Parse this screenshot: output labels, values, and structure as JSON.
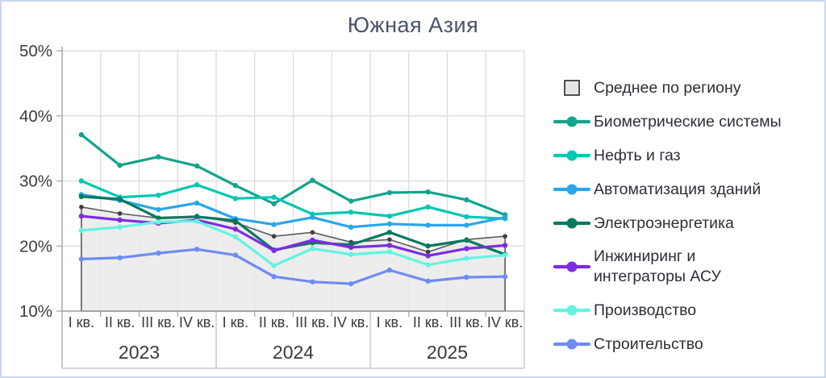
{
  "title": "Южная Азия",
  "legend": {
    "items": [
      {
        "id": "average",
        "label": "Среднее по региону",
        "type": "area",
        "color": "#e6e6e6",
        "border": "#3f3f3f"
      },
      {
        "id": "biometrics",
        "label": "Биометрические системы",
        "type": "line",
        "color": "#12a58b"
      },
      {
        "id": "oil-gas",
        "label": "Нефть и газ",
        "type": "line",
        "color": "#00c7b2"
      },
      {
        "id": "building-automation",
        "label": "Автоматизация зданий",
        "type": "line",
        "color": "#2aa6e8"
      },
      {
        "id": "power",
        "label": "Электроэнергетика",
        "type": "line",
        "color": "#057a5e"
      },
      {
        "id": "engineering-asu",
        "label": "Инжиниринг и\nинтеграторы АСУ",
        "type": "line",
        "color": "#7c2ce2"
      },
      {
        "id": "manufacturing",
        "label": "Производство",
        "type": "line",
        "color": "#62f4e1"
      },
      {
        "id": "construction",
        "label": "Строительство",
        "type": "line",
        "color": "#6e8cf2"
      }
    ]
  },
  "chart_data": {
    "type": "line",
    "title": "Южная Азия",
    "quarter_labels": [
      "I кв.",
      "II кв.",
      "III кв.",
      "IV кв."
    ],
    "year_labels": [
      "2023",
      "2024",
      "2025"
    ],
    "ylim": [
      10,
      50
    ],
    "yticks": [
      50,
      40,
      30,
      20,
      10
    ],
    "y_suffix": "%",
    "grid": true,
    "legend_position": "right",
    "unit": "percent share, quarterly",
    "series": [
      {
        "id": "average",
        "name": "Среднее по региону",
        "type": "area",
        "color": "#5b5b5b",
        "fill": "#e9e9e9",
        "marker": "#3f3f3f",
        "values": [
          26.0,
          25.0,
          24.3,
          24.6,
          23.6,
          21.5,
          22.1,
          20.6,
          21.0,
          19.1,
          21.0,
          21.5
        ]
      },
      {
        "id": "biometrics",
        "name": "Биометрические системы",
        "type": "line",
        "color": "#12a58b",
        "values": [
          37.1,
          32.4,
          33.7,
          32.3,
          29.3,
          26.5,
          30.1,
          26.9,
          28.2,
          28.3,
          27.1,
          24.8
        ]
      },
      {
        "id": "oil-gas",
        "name": "Нефть и газ",
        "type": "line",
        "color": "#00c7b2",
        "values": [
          30.0,
          27.5,
          27.8,
          29.4,
          27.3,
          27.5,
          24.9,
          25.2,
          24.6,
          26.0,
          24.5,
          24.2
        ]
      },
      {
        "id": "building-automation",
        "name": "Автоматизация зданий",
        "type": "line",
        "color": "#2aa6e8",
        "values": [
          27.9,
          27.0,
          25.6,
          26.6,
          24.2,
          23.3,
          24.4,
          22.9,
          23.4,
          23.2,
          23.2,
          24.4
        ]
      },
      {
        "id": "power",
        "name": "Электроэнергетика",
        "type": "line",
        "color": "#057a5e",
        "values": [
          27.6,
          27.2,
          24.3,
          24.5,
          23.9,
          19.4,
          20.5,
          20.2,
          22.1,
          20.0,
          20.9,
          18.7
        ]
      },
      {
        "id": "engineering-asu",
        "name": "Инжиниринг и интеграторы АСУ",
        "type": "line",
        "color": "#7c2ce2",
        "values": [
          24.6,
          24.0,
          23.5,
          24.0,
          22.6,
          19.3,
          20.9,
          19.8,
          20.1,
          18.5,
          19.6,
          20.1
        ]
      },
      {
        "id": "manufacturing",
        "name": "Производство",
        "type": "line",
        "color": "#62f4e1",
        "values": [
          22.4,
          22.9,
          23.7,
          23.8,
          21.4,
          17.0,
          19.6,
          18.7,
          19.1,
          17.1,
          18.1,
          18.6
        ]
      },
      {
        "id": "construction",
        "name": "Строительство",
        "type": "line",
        "color": "#6e8cf2",
        "values": [
          18.0,
          18.2,
          18.9,
          19.5,
          18.6,
          15.3,
          14.5,
          14.2,
          16.3,
          14.6,
          15.2,
          15.3
        ]
      }
    ]
  }
}
